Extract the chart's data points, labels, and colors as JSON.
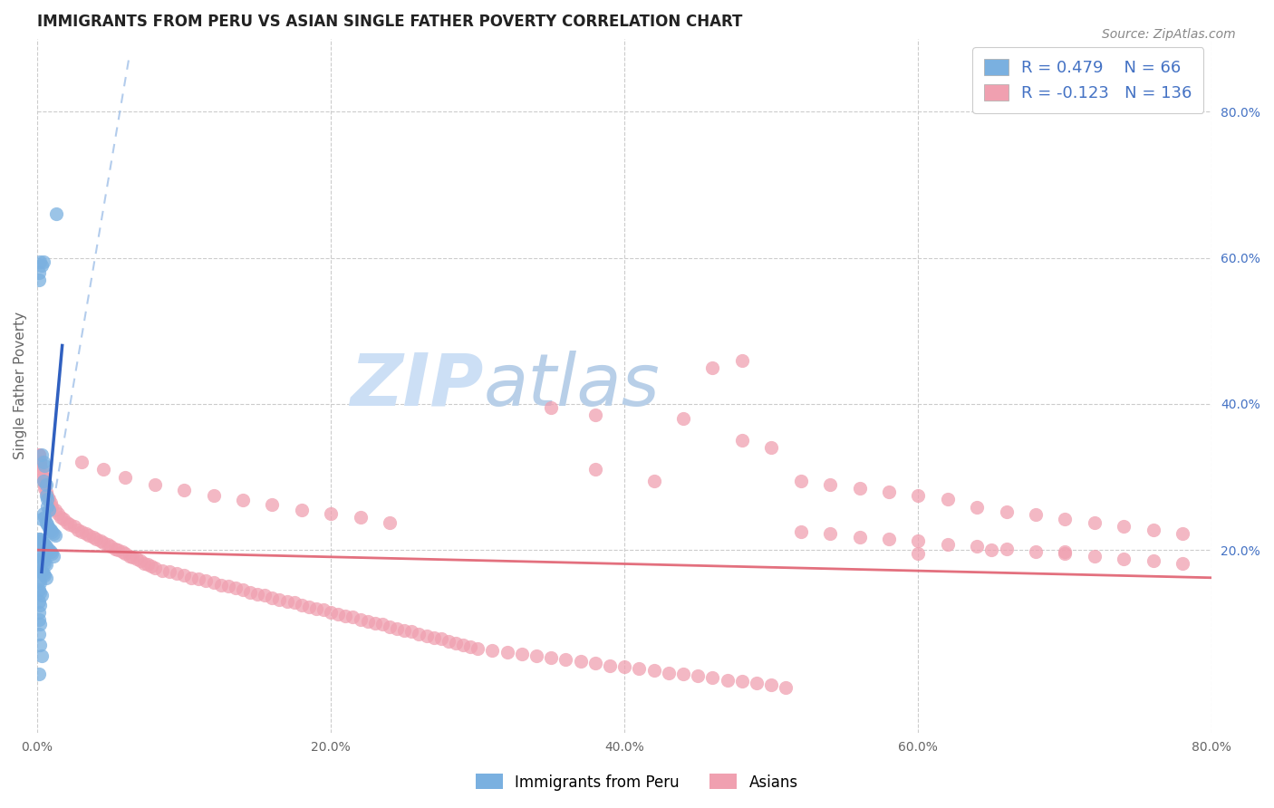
{
  "title": "IMMIGRANTS FROM PERU VS ASIAN SINGLE FATHER POVERTY CORRELATION CHART",
  "source": "Source: ZipAtlas.com",
  "ylabel": "Single Father Poverty",
  "right_yticks": [
    "80.0%",
    "60.0%",
    "40.0%",
    "20.0%"
  ],
  "right_ytick_vals": [
    0.8,
    0.6,
    0.4,
    0.2
  ],
  "xlim": [
    0.0,
    0.8
  ],
  "ylim": [
    -0.05,
    0.9
  ],
  "legend_labels": [
    "Immigrants from Peru",
    "Asians"
  ],
  "R_peru": 0.479,
  "N_peru": 66,
  "R_asian": -0.123,
  "N_asian": 136,
  "blue_color": "#7ab0e0",
  "pink_color": "#f0a0b0",
  "trendline_blue": "#3060c0",
  "trendline_pink": "#e06070",
  "dashed_line_color": "#a0c0e8",
  "watermark_color": "#ccdff5",
  "grid_color": "#cccccc",
  "blue_scatter": [
    [
      0.001,
      0.57
    ],
    [
      0.003,
      0.59
    ],
    [
      0.013,
      0.66
    ],
    [
      0.001,
      0.58
    ],
    [
      0.004,
      0.595
    ],
    [
      0.002,
      0.595
    ],
    [
      0.003,
      0.33
    ],
    [
      0.004,
      0.32
    ],
    [
      0.005,
      0.315
    ],
    [
      0.004,
      0.295
    ],
    [
      0.006,
      0.29
    ],
    [
      0.006,
      0.275
    ],
    [
      0.007,
      0.27
    ],
    [
      0.007,
      0.26
    ],
    [
      0.008,
      0.255
    ],
    [
      0.004,
      0.25
    ],
    [
      0.005,
      0.245
    ],
    [
      0.003,
      0.242
    ],
    [
      0.006,
      0.238
    ],
    [
      0.007,
      0.235
    ],
    [
      0.008,
      0.23
    ],
    [
      0.009,
      0.228
    ],
    [
      0.01,
      0.225
    ],
    [
      0.011,
      0.222
    ],
    [
      0.012,
      0.22
    ],
    [
      0.002,
      0.215
    ],
    [
      0.003,
      0.212
    ],
    [
      0.004,
      0.21
    ],
    [
      0.005,
      0.208
    ],
    [
      0.006,
      0.205
    ],
    [
      0.007,
      0.202
    ],
    [
      0.008,
      0.2
    ],
    [
      0.009,
      0.198
    ],
    [
      0.01,
      0.195
    ],
    [
      0.011,
      0.192
    ],
    [
      0.001,
      0.215
    ],
    [
      0.002,
      0.212
    ],
    [
      0.003,
      0.208
    ],
    [
      0.004,
      0.205
    ],
    [
      0.001,
      0.195
    ],
    [
      0.002,
      0.192
    ],
    [
      0.003,
      0.188
    ],
    [
      0.004,
      0.185
    ],
    [
      0.005,
      0.182
    ],
    [
      0.006,
      0.18
    ],
    [
      0.001,
      0.175
    ],
    [
      0.002,
      0.172
    ],
    [
      0.003,
      0.17
    ],
    [
      0.004,
      0.168
    ],
    [
      0.005,
      0.165
    ],
    [
      0.006,
      0.162
    ],
    [
      0.001,
      0.158
    ],
    [
      0.002,
      0.155
    ],
    [
      0.001,
      0.145
    ],
    [
      0.002,
      0.142
    ],
    [
      0.003,
      0.138
    ],
    [
      0.001,
      0.13
    ],
    [
      0.002,
      0.125
    ],
    [
      0.001,
      0.115
    ],
    [
      0.001,
      0.105
    ],
    [
      0.002,
      0.098
    ],
    [
      0.001,
      0.085
    ],
    [
      0.002,
      0.07
    ],
    [
      0.003,
      0.055
    ],
    [
      0.001,
      0.03
    ]
  ],
  "pink_scatter": [
    [
      0.001,
      0.33
    ],
    [
      0.002,
      0.32
    ],
    [
      0.002,
      0.315
    ],
    [
      0.003,
      0.31
    ],
    [
      0.003,
      0.305
    ],
    [
      0.004,
      0.3
    ],
    [
      0.004,
      0.295
    ],
    [
      0.005,
      0.29
    ],
    [
      0.005,
      0.285
    ],
    [
      0.006,
      0.28
    ],
    [
      0.007,
      0.275
    ],
    [
      0.008,
      0.27
    ],
    [
      0.009,
      0.265
    ],
    [
      0.01,
      0.26
    ],
    [
      0.012,
      0.255
    ],
    [
      0.014,
      0.25
    ],
    [
      0.016,
      0.245
    ],
    [
      0.018,
      0.242
    ],
    [
      0.02,
      0.238
    ],
    [
      0.022,
      0.235
    ],
    [
      0.025,
      0.232
    ],
    [
      0.028,
      0.228
    ],
    [
      0.03,
      0.225
    ],
    [
      0.033,
      0.222
    ],
    [
      0.035,
      0.22
    ],
    [
      0.038,
      0.218
    ],
    [
      0.04,
      0.215
    ],
    [
      0.043,
      0.212
    ],
    [
      0.045,
      0.21
    ],
    [
      0.048,
      0.208
    ],
    [
      0.05,
      0.205
    ],
    [
      0.053,
      0.202
    ],
    [
      0.055,
      0.2
    ],
    [
      0.058,
      0.198
    ],
    [
      0.06,
      0.195
    ],
    [
      0.063,
      0.192
    ],
    [
      0.065,
      0.19
    ],
    [
      0.068,
      0.188
    ],
    [
      0.07,
      0.185
    ],
    [
      0.073,
      0.182
    ],
    [
      0.075,
      0.18
    ],
    [
      0.078,
      0.178
    ],
    [
      0.08,
      0.175
    ],
    [
      0.085,
      0.172
    ],
    [
      0.09,
      0.17
    ],
    [
      0.095,
      0.168
    ],
    [
      0.1,
      0.165
    ],
    [
      0.105,
      0.162
    ],
    [
      0.11,
      0.16
    ],
    [
      0.115,
      0.158
    ],
    [
      0.12,
      0.155
    ],
    [
      0.125,
      0.152
    ],
    [
      0.13,
      0.15
    ],
    [
      0.135,
      0.148
    ],
    [
      0.14,
      0.145
    ],
    [
      0.145,
      0.142
    ],
    [
      0.15,
      0.14
    ],
    [
      0.155,
      0.138
    ],
    [
      0.16,
      0.135
    ],
    [
      0.165,
      0.132
    ],
    [
      0.17,
      0.13
    ],
    [
      0.175,
      0.128
    ],
    [
      0.18,
      0.125
    ],
    [
      0.185,
      0.122
    ],
    [
      0.19,
      0.12
    ],
    [
      0.195,
      0.118
    ],
    [
      0.2,
      0.115
    ],
    [
      0.205,
      0.112
    ],
    [
      0.21,
      0.11
    ],
    [
      0.215,
      0.108
    ],
    [
      0.22,
      0.105
    ],
    [
      0.225,
      0.102
    ],
    [
      0.23,
      0.1
    ],
    [
      0.235,
      0.098
    ],
    [
      0.24,
      0.095
    ],
    [
      0.245,
      0.092
    ],
    [
      0.25,
      0.09
    ],
    [
      0.255,
      0.088
    ],
    [
      0.26,
      0.085
    ],
    [
      0.265,
      0.082
    ],
    [
      0.27,
      0.08
    ],
    [
      0.275,
      0.078
    ],
    [
      0.28,
      0.075
    ],
    [
      0.285,
      0.072
    ],
    [
      0.29,
      0.07
    ],
    [
      0.295,
      0.068
    ],
    [
      0.3,
      0.065
    ],
    [
      0.31,
      0.062
    ],
    [
      0.32,
      0.06
    ],
    [
      0.33,
      0.058
    ],
    [
      0.34,
      0.055
    ],
    [
      0.35,
      0.052
    ],
    [
      0.36,
      0.05
    ],
    [
      0.37,
      0.048
    ],
    [
      0.38,
      0.045
    ],
    [
      0.39,
      0.042
    ],
    [
      0.4,
      0.04
    ],
    [
      0.41,
      0.038
    ],
    [
      0.42,
      0.035
    ],
    [
      0.43,
      0.032
    ],
    [
      0.44,
      0.03
    ],
    [
      0.45,
      0.028
    ],
    [
      0.46,
      0.025
    ],
    [
      0.47,
      0.022
    ],
    [
      0.48,
      0.02
    ],
    [
      0.49,
      0.018
    ],
    [
      0.5,
      0.015
    ],
    [
      0.51,
      0.012
    ],
    [
      0.03,
      0.32
    ],
    [
      0.045,
      0.31
    ],
    [
      0.06,
      0.3
    ],
    [
      0.08,
      0.29
    ],
    [
      0.1,
      0.282
    ],
    [
      0.12,
      0.275
    ],
    [
      0.14,
      0.268
    ],
    [
      0.16,
      0.262
    ],
    [
      0.18,
      0.255
    ],
    [
      0.2,
      0.25
    ],
    [
      0.22,
      0.245
    ],
    [
      0.24,
      0.238
    ],
    [
      0.001,
      0.33
    ],
    [
      0.002,
      0.32
    ],
    [
      0.38,
      0.31
    ],
    [
      0.42,
      0.295
    ],
    [
      0.44,
      0.38
    ],
    [
      0.46,
      0.45
    ],
    [
      0.48,
      0.35
    ],
    [
      0.5,
      0.34
    ],
    [
      0.38,
      0.385
    ],
    [
      0.35,
      0.395
    ],
    [
      0.52,
      0.295
    ],
    [
      0.54,
      0.29
    ],
    [
      0.56,
      0.285
    ],
    [
      0.58,
      0.28
    ],
    [
      0.6,
      0.275
    ],
    [
      0.62,
      0.27
    ],
    [
      0.64,
      0.258
    ],
    [
      0.66,
      0.252
    ],
    [
      0.68,
      0.248
    ],
    [
      0.7,
      0.242
    ],
    [
      0.72,
      0.238
    ],
    [
      0.74,
      0.232
    ],
    [
      0.76,
      0.228
    ],
    [
      0.78,
      0.222
    ],
    [
      0.52,
      0.225
    ],
    [
      0.54,
      0.222
    ],
    [
      0.56,
      0.218
    ],
    [
      0.58,
      0.215
    ],
    [
      0.6,
      0.212
    ],
    [
      0.62,
      0.208
    ],
    [
      0.64,
      0.205
    ],
    [
      0.66,
      0.202
    ],
    [
      0.68,
      0.198
    ],
    [
      0.7,
      0.195
    ],
    [
      0.72,
      0.192
    ],
    [
      0.74,
      0.188
    ],
    [
      0.76,
      0.185
    ],
    [
      0.78,
      0.182
    ],
    [
      0.48,
      0.46
    ],
    [
      0.6,
      0.195
    ],
    [
      0.65,
      0.2
    ],
    [
      0.7,
      0.198
    ]
  ]
}
